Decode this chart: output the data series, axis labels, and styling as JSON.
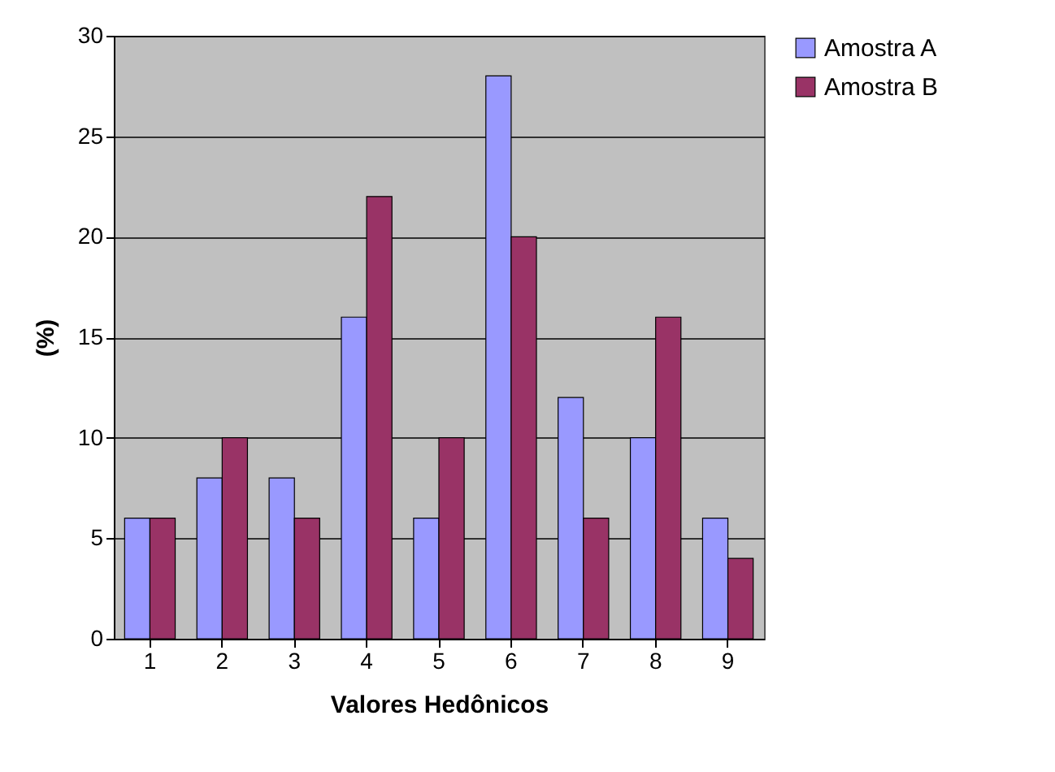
{
  "chart_data": {
    "type": "bar",
    "xlabel": "Valores Hedônicos",
    "ylabel": "(%)",
    "categories": [
      "1",
      "2",
      "3",
      "4",
      "5",
      "6",
      "7",
      "8",
      "9"
    ],
    "series": [
      {
        "name": "Amostra A",
        "color": "#9999ff",
        "values": [
          6,
          8,
          8,
          16,
          6,
          28,
          12,
          10,
          6
        ]
      },
      {
        "name": "Amostra B",
        "color": "#993366",
        "values": [
          6,
          10,
          6,
          22,
          10,
          20,
          6,
          16,
          4
        ]
      }
    ],
    "ylim": [
      0,
      30
    ],
    "yticks": [
      0,
      5,
      10,
      15,
      20,
      25,
      30
    ],
    "grid": "y",
    "legend": "right"
  }
}
